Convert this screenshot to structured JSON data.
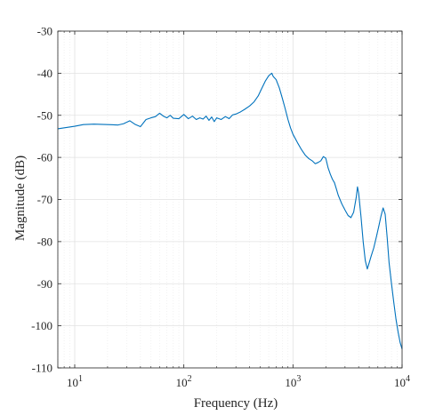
{
  "chart_data": {
    "type": "line",
    "xlabel": "Frequency (Hz)",
    "ylabel": "Magnitude (dB)",
    "x_scale": "log",
    "xlim": [
      7,
      10000
    ],
    "ylim": [
      -110,
      -30
    ],
    "y_ticks": [
      -30,
      -40,
      -50,
      -60,
      -70,
      -80,
      -90,
      -100,
      -110
    ],
    "x_ticks": [
      {
        "base": "10",
        "exp": "1",
        "value": 10
      },
      {
        "base": "10",
        "exp": "2",
        "value": 100
      },
      {
        "base": "10",
        "exp": "3",
        "value": 1000
      },
      {
        "base": "10",
        "exp": "4",
        "value": 10000
      }
    ],
    "grid": true,
    "minor_grid": true,
    "line_color": "#0072BD",
    "series": [
      {
        "x": [
          7,
          10,
          12,
          15,
          20,
          25,
          28,
          32,
          36,
          40,
          45,
          50,
          55,
          60,
          65,
          70,
          75,
          80,
          90,
          100,
          110,
          120,
          130,
          140,
          150,
          160,
          170,
          180,
          190,
          200,
          220,
          240,
          260,
          280,
          300,
          330,
          360,
          400,
          440,
          480,
          520,
          560,
          600,
          640,
          660,
          700,
          750,
          800,
          850,
          900,
          950,
          1000,
          1100,
          1200,
          1300,
          1400,
          1500,
          1600,
          1700,
          1800,
          1900,
          2000,
          2100,
          2200,
          2300,
          2400,
          2500,
          2600,
          2800,
          3000,
          3200,
          3400,
          3600,
          3800,
          3900,
          4000,
          4200,
          4400,
          4600,
          4800,
          5000,
          5200,
          5500,
          5800,
          6100,
          6400,
          6700,
          7000,
          7300,
          7600,
          8000,
          8400,
          8800,
          9200,
          9600,
          10000
        ],
        "y": [
          -53.2,
          -52.6,
          -52.2,
          -52.1,
          -52.2,
          -52.3,
          -52.0,
          -51.3,
          -52.2,
          -52.7,
          -51.0,
          -50.6,
          -50.3,
          -49.5,
          -50.2,
          -50.6,
          -50.0,
          -50.7,
          -50.8,
          -49.8,
          -50.8,
          -50.2,
          -51.0,
          -50.6,
          -50.9,
          -50.2,
          -51.2,
          -50.4,
          -51.5,
          -50.6,
          -51.0,
          -50.3,
          -50.8,
          -49.9,
          -49.7,
          -49.2,
          -48.6,
          -47.8,
          -46.8,
          -45.4,
          -43.5,
          -41.8,
          -40.6,
          -40.0,
          -40.8,
          -41.5,
          -43.5,
          -46.0,
          -48.5,
          -51.0,
          -53.0,
          -54.5,
          -56.5,
          -58.2,
          -59.5,
          -60.3,
          -60.8,
          -61.5,
          -61.2,
          -60.8,
          -59.8,
          -60.2,
          -62.5,
          -64.0,
          -65.2,
          -66.0,
          -67.5,
          -69.0,
          -71.0,
          -72.5,
          -73.8,
          -74.3,
          -73.0,
          -69.5,
          -67.0,
          -68.5,
          -74.0,
          -80.0,
          -84.5,
          -86.5,
          -85.0,
          -83.5,
          -81.5,
          -79.0,
          -76.5,
          -74.0,
          -72.0,
          -73.5,
          -79.0,
          -85.0,
          -90.0,
          -94.5,
          -98.5,
          -101.5,
          -104.0,
          -105.5
        ]
      }
    ]
  }
}
